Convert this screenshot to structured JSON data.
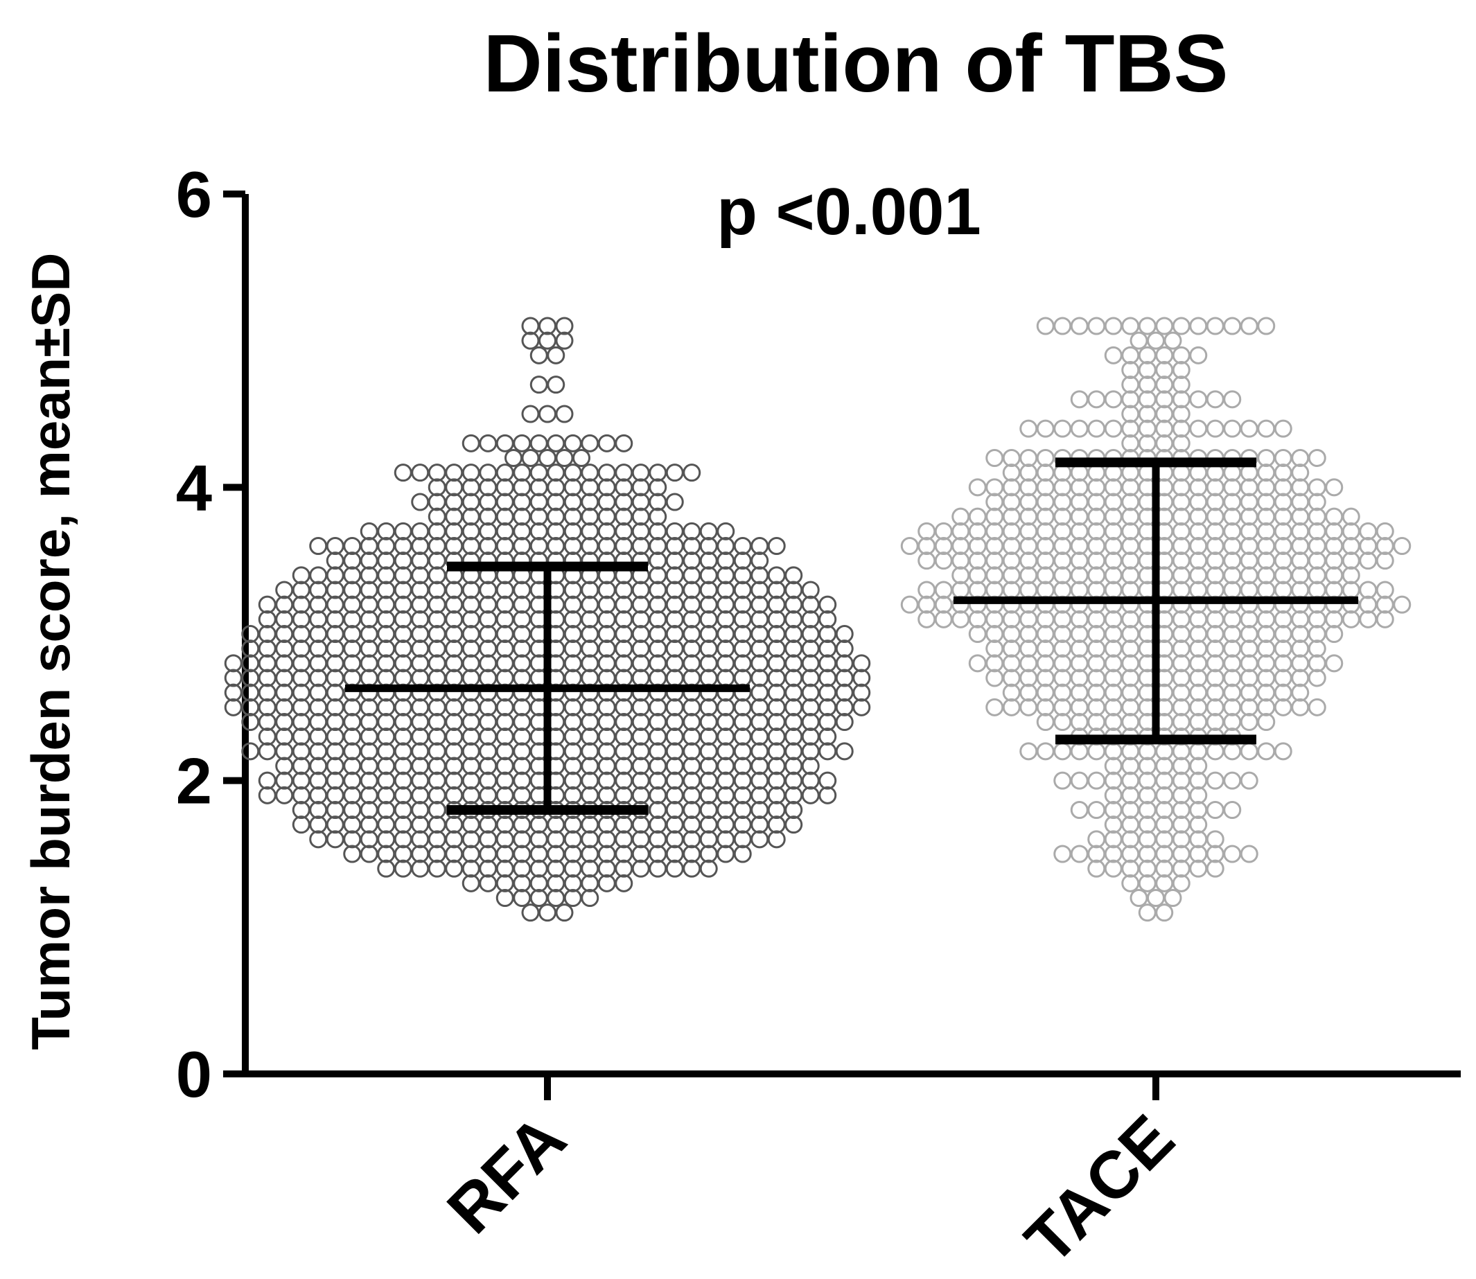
{
  "chart_data": {
    "type": "scatter",
    "title": "Distribution of TBS",
    "annotation": "p <0.001",
    "ylabel": "Tumor burden score, mean±SD",
    "xlabel": "",
    "ylim": [
      0,
      6
    ],
    "yticks": [
      0,
      2,
      4,
      6
    ],
    "categories": [
      "RFA",
      "TACE"
    ],
    "series": [
      {
        "name": "RFA",
        "color": "#555555",
        "mean": 2.63,
        "sd_low": 1.8,
        "sd_high": 3.46,
        "bins": [
          {
            "y": 5.1,
            "n": 3
          },
          {
            "y": 5.0,
            "n": 3
          },
          {
            "y": 4.9,
            "n": 2
          },
          {
            "y": 4.7,
            "n": 2
          },
          {
            "y": 4.5,
            "n": 3
          },
          {
            "y": 4.3,
            "n": 10
          },
          {
            "y": 4.2,
            "n": 5
          },
          {
            "y": 4.1,
            "n": 18
          },
          {
            "y": 4.0,
            "n": 14
          },
          {
            "y": 3.9,
            "n": 16
          },
          {
            "y": 3.8,
            "n": 14
          },
          {
            "y": 3.7,
            "n": 22
          },
          {
            "y": 3.6,
            "n": 28
          },
          {
            "y": 3.5,
            "n": 26
          },
          {
            "y": 3.4,
            "n": 30
          },
          {
            "y": 3.3,
            "n": 32
          },
          {
            "y": 3.2,
            "n": 34
          },
          {
            "y": 3.1,
            "n": 34
          },
          {
            "y": 3.0,
            "n": 36
          },
          {
            "y": 2.9,
            "n": 36
          },
          {
            "y": 2.8,
            "n": 38
          },
          {
            "y": 2.7,
            "n": 38
          },
          {
            "y": 2.6,
            "n": 38
          },
          {
            "y": 2.5,
            "n": 38
          },
          {
            "y": 2.4,
            "n": 36
          },
          {
            "y": 2.3,
            "n": 34
          },
          {
            "y": 2.2,
            "n": 36
          },
          {
            "y": 2.1,
            "n": 32
          },
          {
            "y": 2.0,
            "n": 34
          },
          {
            "y": 1.9,
            "n": 34
          },
          {
            "y": 1.8,
            "n": 30
          },
          {
            "y": 1.7,
            "n": 30
          },
          {
            "y": 1.6,
            "n": 28
          },
          {
            "y": 1.5,
            "n": 24
          },
          {
            "y": 1.4,
            "n": 20
          },
          {
            "y": 1.3,
            "n": 10
          },
          {
            "y": 1.2,
            "n": 6
          },
          {
            "y": 1.1,
            "n": 3
          }
        ]
      },
      {
        "name": "TACE",
        "color": "#aaaaaa",
        "mean": 3.23,
        "sd_low": 2.28,
        "sd_high": 4.17,
        "bins": [
          {
            "y": 5.1,
            "n": 14
          },
          {
            "y": 5.0,
            "n": 3
          },
          {
            "y": 4.9,
            "n": 6
          },
          {
            "y": 4.8,
            "n": 4
          },
          {
            "y": 4.7,
            "n": 4
          },
          {
            "y": 4.6,
            "n": 10
          },
          {
            "y": 4.5,
            "n": 4
          },
          {
            "y": 4.4,
            "n": 16
          },
          {
            "y": 4.3,
            "n": 4
          },
          {
            "y": 4.2,
            "n": 20
          },
          {
            "y": 4.1,
            "n": 18
          },
          {
            "y": 4.0,
            "n": 22
          },
          {
            "y": 3.9,
            "n": 20
          },
          {
            "y": 3.8,
            "n": 24
          },
          {
            "y": 3.7,
            "n": 28
          },
          {
            "y": 3.6,
            "n": 30
          },
          {
            "y": 3.5,
            "n": 28
          },
          {
            "y": 3.4,
            "n": 24
          },
          {
            "y": 3.3,
            "n": 28
          },
          {
            "y": 3.2,
            "n": 30
          },
          {
            "y": 3.1,
            "n": 28
          },
          {
            "y": 3.0,
            "n": 22
          },
          {
            "y": 2.9,
            "n": 20
          },
          {
            "y": 2.8,
            "n": 22
          },
          {
            "y": 2.7,
            "n": 20
          },
          {
            "y": 2.6,
            "n": 18
          },
          {
            "y": 2.5,
            "n": 20
          },
          {
            "y": 2.4,
            "n": 14
          },
          {
            "y": 2.3,
            "n": 10
          },
          {
            "y": 2.2,
            "n": 16
          },
          {
            "y": 2.1,
            "n": 6
          },
          {
            "y": 2.0,
            "n": 12
          },
          {
            "y": 1.9,
            "n": 6
          },
          {
            "y": 1.8,
            "n": 10
          },
          {
            "y": 1.7,
            "n": 6
          },
          {
            "y": 1.6,
            "n": 8
          },
          {
            "y": 1.5,
            "n": 12
          },
          {
            "y": 1.4,
            "n": 8
          },
          {
            "y": 1.3,
            "n": 4
          },
          {
            "y": 1.2,
            "n": 3
          },
          {
            "y": 1.1,
            "n": 2
          }
        ]
      }
    ]
  }
}
